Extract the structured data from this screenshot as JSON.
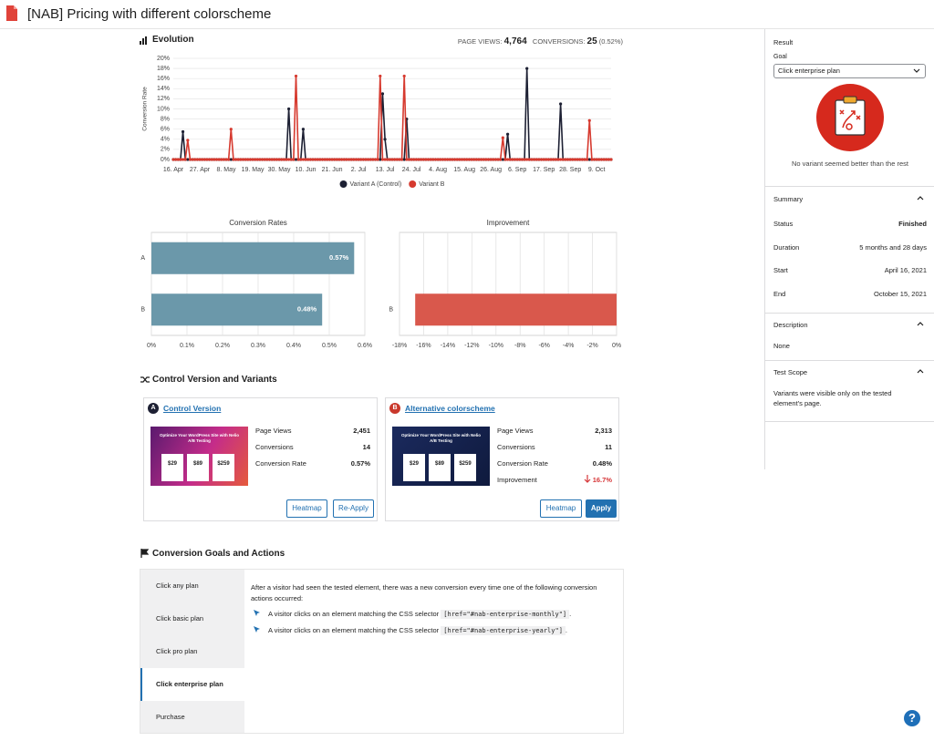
{
  "header": {
    "title": "[NAB] Pricing with different colorscheme"
  },
  "evolution_stats": {
    "page_views_label": "PAGE VIEWS:",
    "page_views": "4,764",
    "conversions_label": "CONVERSIONS:",
    "conversions": "25",
    "conversion_rate": "(0.52%)"
  },
  "chart_data": [
    {
      "type": "line",
      "title": "Evolution",
      "y_label": "Conversion Rate",
      "grid": true,
      "x": [
        "16. Apr",
        "17. Apr",
        "18. Apr",
        "19. Apr",
        "20. Apr",
        "21. Apr",
        "22. Apr",
        "23. Apr",
        "24. Apr",
        "25. Apr",
        "26. Apr",
        "27. Apr",
        "28. Apr",
        "29. Apr",
        "30. Apr",
        "1. May",
        "2. May",
        "3. May",
        "4. May",
        "5. May",
        "6. May",
        "7. May",
        "8. May",
        "9. May",
        "10. May",
        "11. May",
        "12. May",
        "13. May",
        "14. May",
        "15. May",
        "16. May",
        "17. May",
        "18. May",
        "19. May",
        "20. May",
        "21. May",
        "22. May",
        "23. May",
        "24. May",
        "25. May",
        "26. May",
        "27. May",
        "28. May",
        "29. May",
        "30. May",
        "31. May",
        "1. Jun",
        "2. Jun",
        "3. Jun",
        "4. Jun",
        "5. Jun",
        "6. Jun",
        "7. Jun",
        "8. Jun",
        "9. Jun",
        "10. Jun",
        "11. Jun",
        "12. Jun",
        "13. Jun",
        "14. Jun",
        "15. Jun",
        "16. Jun",
        "17. Jun",
        "18. Jun",
        "19. Jun",
        "20. Jun",
        "21. Jun",
        "22. Jun",
        "23. Jun",
        "24. Jun",
        "25. Jun",
        "26. Jun",
        "27. Jun",
        "28. Jun",
        "29. Jun",
        "30. Jun",
        "1. Jul",
        "2. Jul",
        "3. Jul",
        "4. Jul",
        "5. Jul",
        "6. Jul",
        "7. Jul",
        "8. Jul",
        "9. Jul",
        "10. Jul",
        "11. Jul",
        "12. Jul",
        "13. Jul",
        "14. Jul",
        "15. Jul",
        "16. Jul",
        "17. Jul",
        "18. Jul",
        "19. Jul",
        "20. Jul",
        "21. Jul",
        "22. Jul",
        "23. Jul",
        "24. Jul",
        "25. Jul",
        "26. Jul",
        "27. Jul",
        "28. Jul",
        "29. Jul",
        "30. Jul",
        "31. Jul",
        "1. Aug",
        "2. Aug",
        "3. Aug",
        "4. Aug",
        "5. Aug",
        "6. Aug",
        "7. Aug",
        "8. Aug",
        "9. Aug",
        "10. Aug",
        "11. Aug",
        "12. Aug",
        "13. Aug",
        "14. Aug",
        "15. Aug",
        "16. Aug",
        "17. Aug",
        "18. Aug",
        "19. Aug",
        "20. Aug",
        "21. Aug",
        "22. Aug",
        "23. Aug",
        "24. Aug",
        "25. Aug",
        "26. Aug",
        "27. Aug",
        "28. Aug",
        "29. Aug",
        "30. Aug",
        "31. Aug",
        "1. Sep",
        "2. Sep",
        "3. Sep",
        "4. Sep",
        "5. Sep",
        "6. Sep",
        "7. Sep",
        "8. Sep",
        "9. Sep",
        "10. Sep",
        "11. Sep",
        "12. Sep",
        "13. Sep",
        "14. Sep",
        "15. Sep",
        "16. Sep",
        "17. Sep",
        "18. Sep",
        "19. Sep",
        "20. Sep",
        "21. Sep",
        "22. Sep",
        "23. Sep",
        "24. Sep",
        "25. Sep",
        "26. Sep",
        "27. Sep",
        "28. Sep",
        "29. Sep",
        "30. Sep",
        "1. Oct",
        "2. Oct",
        "3. Oct",
        "4. Oct",
        "5. Oct",
        "6. Oct",
        "7. Oct",
        "8. Oct",
        "9. Oct",
        "10. Oct",
        "11. Oct",
        "12. Oct",
        "13. Oct",
        "14. Oct",
        "15. Oct"
      ],
      "xticks": [
        "16. Apr",
        "27. Apr",
        "8. May",
        "19. May",
        "30. May",
        "10. Jun",
        "21. Jun",
        "2. Jul",
        "13. Jul",
        "24. Jul",
        "4. Aug",
        "15. Aug",
        "26. Aug",
        "6. Sep",
        "17. Sep",
        "28. Sep",
        "9. Oct"
      ],
      "ylim": [
        0,
        20
      ],
      "yticks": [
        {
          "value": 0,
          "label": "0%"
        },
        {
          "value": 2,
          "label": "2%"
        },
        {
          "value": 4,
          "label": "4%"
        },
        {
          "value": 6,
          "label": "6%"
        },
        {
          "value": 8,
          "label": "8%"
        },
        {
          "value": 10,
          "label": "10%"
        },
        {
          "value": 12,
          "label": "12%"
        },
        {
          "value": 14,
          "label": "14%"
        },
        {
          "value": 16,
          "label": "16%"
        },
        {
          "value": 18,
          "label": "18%"
        },
        {
          "value": 20,
          "label": "20%"
        }
      ],
      "series": [
        {
          "name": "Variant A (Control)",
          "color": "#1d2033",
          "values": [
            0,
            0,
            0,
            0,
            5.5,
            0,
            0,
            0,
            0,
            0,
            0,
            0,
            0,
            0,
            0,
            0,
            0,
            0,
            0,
            0,
            0,
            0,
            0,
            0,
            0,
            0,
            0,
            0,
            0,
            0,
            0,
            0,
            0,
            0,
            0,
            0,
            0,
            0,
            0,
            0,
            0,
            0,
            0,
            0,
            0,
            0,
            0,
            0,
            10,
            0,
            0,
            0,
            0,
            0,
            6,
            0,
            0,
            0,
            0,
            0,
            0,
            0,
            0,
            0,
            0,
            0,
            0,
            0,
            0,
            0,
            0,
            0,
            0,
            0,
            0,
            0,
            0,
            0,
            0,
            0,
            0,
            0,
            0,
            0,
            0,
            0,
            0,
            13,
            4,
            0,
            0,
            0,
            0,
            0,
            0,
            0,
            0,
            8,
            0,
            0,
            0,
            0,
            0,
            0,
            0,
            0,
            0,
            0,
            0,
            0,
            0,
            0,
            0,
            0,
            0,
            0,
            0,
            0,
            0,
            0,
            0,
            0,
            0,
            0,
            0,
            0,
            0,
            0,
            0,
            0,
            0,
            0,
            0,
            0,
            0,
            0,
            0,
            0,
            0,
            5,
            0,
            0,
            0,
            0,
            0,
            0,
            0,
            18,
            0,
            0,
            0,
            0,
            0,
            0,
            0,
            0,
            0,
            0,
            0,
            0,
            0,
            11,
            0,
            0,
            0,
            0,
            0,
            0,
            0,
            0,
            0,
            0,
            0,
            0,
            0,
            0,
            0,
            0,
            0,
            0,
            0,
            0,
            0
          ]
        },
        {
          "name": "Variant B",
          "color": "#d63a2f",
          "values": [
            0,
            0,
            0,
            0,
            0,
            0,
            3.8,
            0,
            0,
            0,
            0,
            0,
            0,
            0,
            0,
            0,
            0,
            0,
            0,
            0,
            0,
            0,
            0,
            0,
            6,
            0,
            0,
            0,
            0,
            0,
            0,
            0,
            0,
            0,
            0,
            0,
            0,
            0,
            0,
            0,
            0,
            0,
            0,
            0,
            0,
            0,
            0,
            0,
            0,
            0,
            0,
            16.5,
            0,
            0,
            0,
            0,
            0,
            0,
            0,
            0,
            0,
            0,
            0,
            0,
            0,
            0,
            0,
            0,
            0,
            0,
            0,
            0,
            0,
            0,
            0,
            0,
            0,
            0,
            0,
            0,
            0,
            0,
            0,
            0,
            0,
            0,
            16.5,
            0,
            0,
            0,
            0,
            0,
            0,
            0,
            0,
            0,
            16.5,
            0,
            0,
            0,
            0,
            0,
            0,
            0,
            0,
            0,
            0,
            0,
            0,
            0,
            0,
            0,
            0,
            0,
            0,
            0,
            0,
            0,
            0,
            0,
            0,
            0,
            0,
            0,
            0,
            0,
            0,
            0,
            0,
            0,
            0,
            0,
            0,
            0,
            0,
            0,
            0,
            4.3,
            0,
            0,
            0,
            0,
            0,
            0,
            0,
            0,
            0,
            0,
            0,
            0,
            0,
            0,
            0,
            0,
            0,
            0,
            0,
            0,
            0,
            0,
            0,
            0,
            0,
            0,
            0,
            0,
            0,
            0,
            0,
            0,
            0,
            0,
            0,
            7.7,
            0,
            0,
            0,
            0,
            0,
            0,
            0,
            0,
            0
          ]
        }
      ]
    },
    {
      "type": "bar",
      "orientation": "horizontal",
      "title": "Conversion Rates",
      "categories": [
        "A",
        "B"
      ],
      "values": [
        0.57,
        0.48
      ],
      "value_labels": [
        "0.57%",
        "0.48%"
      ],
      "color": "#6b98aa",
      "grid": true,
      "xlim": [
        0,
        0.6
      ],
      "xticks": [
        {
          "value": 0,
          "label": "0%"
        },
        {
          "value": 0.1,
          "label": "0.1%"
        },
        {
          "value": 0.2,
          "label": "0.2%"
        },
        {
          "value": 0.3,
          "label": "0.3%"
        },
        {
          "value": 0.4,
          "label": "0.4%"
        },
        {
          "value": 0.5,
          "label": "0.5%"
        },
        {
          "value": 0.6,
          "label": "0.6%"
        }
      ]
    },
    {
      "type": "bar",
      "orientation": "horizontal",
      "title": "Improvement",
      "categories": [
        null,
        "B"
      ],
      "values": [
        null,
        -16.7
      ],
      "color": "#d9584c",
      "grid": true,
      "xlim": [
        -18,
        0
      ],
      "xticks": [
        {
          "value": -18,
          "label": "-18%"
        },
        {
          "value": -16,
          "label": "-16%"
        },
        {
          "value": -14,
          "label": "-14%"
        },
        {
          "value": -12,
          "label": "-12%"
        },
        {
          "value": -10,
          "label": "-10%"
        },
        {
          "value": -8,
          "label": "-8%"
        },
        {
          "value": -6,
          "label": "-6%"
        },
        {
          "value": -4,
          "label": "-4%"
        },
        {
          "value": -2,
          "label": "-2%"
        },
        {
          "value": 0,
          "label": "0%"
        }
      ]
    }
  ],
  "variants_section": {
    "title": "Control Version and Variants",
    "variants": [
      {
        "badge": "A",
        "name": "Control Version",
        "thumbnail": {
          "headline": "Optimize Your WordPress Site with Nelio A/B Testing",
          "prices": [
            "$29",
            "$89",
            "$259"
          ]
        },
        "stats": [
          [
            "Page Views",
            "2,451"
          ],
          [
            "Conversions",
            "14"
          ],
          [
            "Conversion Rate",
            "0.57%"
          ]
        ],
        "buttons": [
          "Heatmap",
          "Re-Apply"
        ]
      },
      {
        "badge": "B",
        "name": "Alternative colorscheme",
        "thumbnail": {
          "headline": "Optimize Your WordPress Site with Nelio A/B Testing",
          "prices": [
            "$29",
            "$89",
            "$259"
          ]
        },
        "stats": [
          [
            "Page Views",
            "2,313"
          ],
          [
            "Conversions",
            "11"
          ],
          [
            "Conversion Rate",
            "0.48%"
          ],
          [
            "Improvement",
            "16.7%"
          ]
        ],
        "buttons": [
          "Heatmap",
          "Apply"
        ]
      }
    ]
  },
  "goals_section": {
    "title": "Conversion Goals and Actions",
    "goals": [
      "Click any plan",
      "Click basic plan",
      "Click pro plan",
      "Click enterprise plan",
      "Purchase"
    ],
    "selected_goal": 3,
    "description": "After a visitor had seen the tested element, there was a new conversion every time one of the following conversion actions occurred:",
    "actions": [
      {
        "text": "A visitor clicks on an element matching the CSS selector",
        "selector": "[href=\"#nab-enterprise-monthly\"]",
        "end": "."
      },
      {
        "text": "A visitor clicks on an element matching the CSS selector",
        "selector": "[href=\"#nab-enterprise-yearly\"]",
        "end": "."
      }
    ]
  },
  "sidebar": {
    "result": {
      "title": "Result",
      "goal_label": "Goal",
      "goal": "Click enterprise plan",
      "message": "No variant seemed better than the rest"
    },
    "summary": {
      "title": "Summary",
      "rows": [
        [
          "Status",
          "Finished"
        ],
        [
          "Duration",
          "5 months and 28 days"
        ],
        [
          "Start",
          "April 16, 2021"
        ],
        [
          "End",
          "October 15, 2021"
        ]
      ]
    },
    "description": {
      "title": "Description",
      "text": "None"
    },
    "test_scope": {
      "title": "Test Scope",
      "text": "Variants were visible only on the tested element's page."
    }
  },
  "help": "?"
}
